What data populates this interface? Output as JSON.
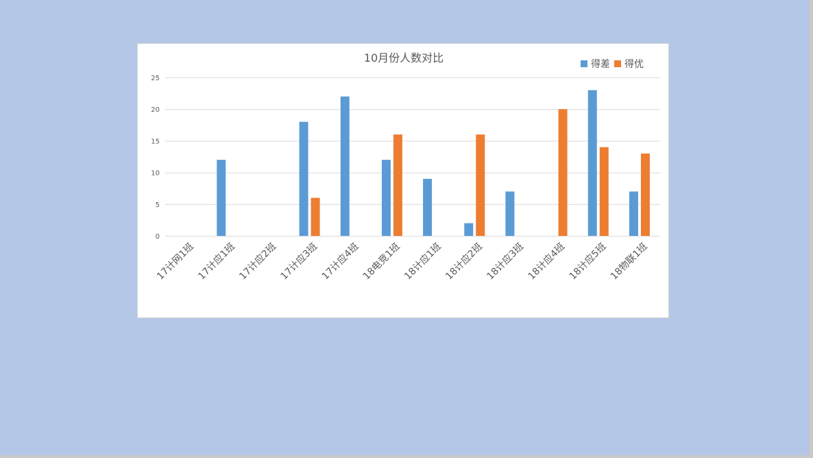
{
  "chart_data": {
    "type": "bar",
    "title": "10月份人数对比",
    "categories": [
      "17计网1班",
      "17计应1班",
      "17计应2班",
      "17计应3班",
      "17计应4班",
      "18电竞1班",
      "18计应1班",
      "18计应2班",
      "18计应3班",
      "18计应4班",
      "18计应5班",
      "18物联1班"
    ],
    "series": [
      {
        "name": "得差",
        "color": "#5b9bd5",
        "values": [
          0,
          12,
          0,
          18,
          22,
          12,
          9,
          2,
          7,
          0,
          23,
          7
        ]
      },
      {
        "name": "得优",
        "color": "#ed7d31",
        "values": [
          0,
          0,
          0,
          6,
          0,
          16,
          0,
          16,
          0,
          20,
          14,
          13
        ]
      }
    ],
    "ylim": [
      0,
      25
    ],
    "yticks": [
      "0",
      "5",
      "10",
      "15",
      "20",
      "25"
    ],
    "grid": true,
    "legend_position": "top-right"
  }
}
